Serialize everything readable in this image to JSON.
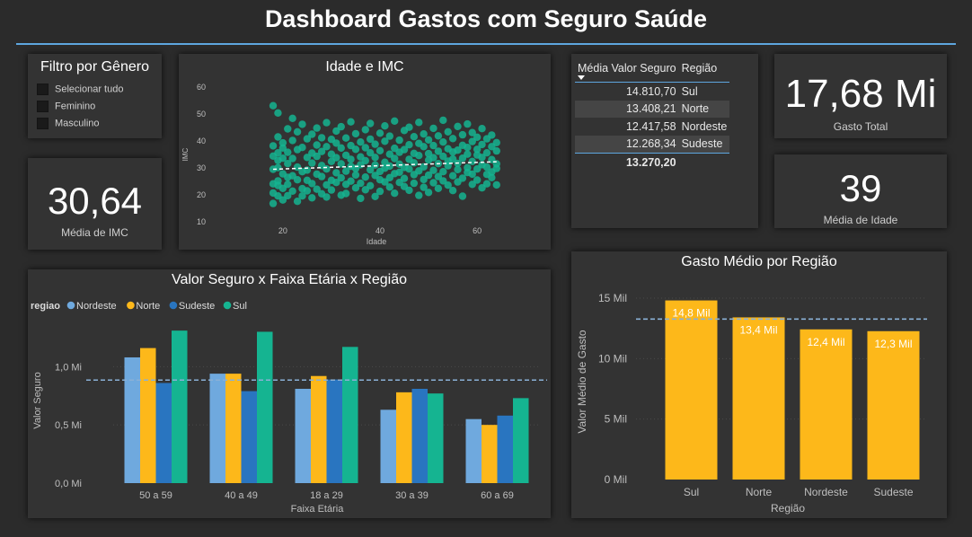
{
  "header": {
    "title": "Dashboard Gastos com Seguro Saúde"
  },
  "filter": {
    "title": "Filtro por Gênero",
    "options": [
      "Selecionar tudo",
      "Feminino",
      "Masculino"
    ]
  },
  "kpis": {
    "imc": {
      "value": "30,64",
      "label": "Média de IMC"
    },
    "total": {
      "value": "17,68 Mi",
      "label": "Gasto Total"
    },
    "age": {
      "value": "39",
      "label": "Média de Idade"
    }
  },
  "table": {
    "headers": [
      "Média Valor Seguro",
      "Região"
    ],
    "rows": [
      {
        "value": "14.810,70",
        "region": "Sul"
      },
      {
        "value": "13.408,21",
        "region": "Norte"
      },
      {
        "value": "12.417,58",
        "region": "Nordeste"
      },
      {
        "value": "12.268,34",
        "region": "Sudeste"
      }
    ],
    "total": "13.270,20"
  },
  "colors": {
    "teal": "#15b491",
    "yellow": "#fdb81a",
    "lightblue": "#6fa9de",
    "darkblue": "#2975c0",
    "reference": "#8ab0d6",
    "panel": "#333333",
    "accent_line": "#5ea6df"
  },
  "chart_data": [
    {
      "id": "scatter",
      "type": "scatter",
      "title": "Idade e IMC",
      "xlabel": "Idade",
      "ylabel": "IMC",
      "xlim": [
        13,
        67
      ],
      "ylim": [
        10,
        60
      ],
      "xticks": [
        20,
        40,
        60
      ],
      "yticks": [
        10,
        20,
        30,
        40,
        50,
        60
      ],
      "trendline": {
        "x": [
          18,
          64
        ],
        "y": [
          29.5,
          32.3
        ]
      },
      "points": [
        [
          18,
          16.8
        ],
        [
          18,
          38.2
        ],
        [
          18,
          24.1
        ],
        [
          18,
          34.4
        ],
        [
          18,
          20.7
        ],
        [
          18,
          53.1
        ],
        [
          18,
          29.5
        ],
        [
          19,
          30.1
        ],
        [
          19,
          25.2
        ],
        [
          19,
          41.5
        ],
        [
          19,
          19.6
        ],
        [
          19,
          35.6
        ],
        [
          19,
          23.5
        ],
        [
          19,
          32.8
        ],
        [
          19,
          50.4
        ],
        [
          20,
          22.4
        ],
        [
          20,
          39.3
        ],
        [
          20,
          27.8
        ],
        [
          20,
          33.6
        ],
        [
          20,
          18.1
        ],
        [
          20,
          37.4
        ],
        [
          21,
          26.5
        ],
        [
          21,
          44.5
        ],
        [
          21,
          19.7
        ],
        [
          21,
          31.6
        ],
        [
          21,
          23.9
        ],
        [
          21,
          35.8
        ],
        [
          22,
          27.1
        ],
        [
          22,
          48.4
        ],
        [
          22,
          21.4
        ],
        [
          22,
          33.5
        ],
        [
          22,
          40.2
        ],
        [
          23,
          25.6
        ],
        [
          23,
          17.6
        ],
        [
          23,
          36.8
        ],
        [
          23,
          30.3
        ],
        [
          23,
          43.4
        ],
        [
          24,
          22.3
        ],
        [
          24,
          28.6
        ],
        [
          24,
          37.6
        ],
        [
          24,
          19.6
        ],
        [
          24,
          46.2
        ],
        [
          25,
          25.4
        ],
        [
          25,
          33.9
        ],
        [
          25,
          21.5
        ],
        [
          25,
          40.8
        ],
        [
          25,
          29.2
        ],
        [
          26,
          24.2
        ],
        [
          26,
          35.5
        ],
        [
          26,
          18.9
        ],
        [
          26,
          42.5
        ],
        [
          26,
          31.8
        ],
        [
          27,
          27.7
        ],
        [
          27,
          38.5
        ],
        [
          27,
          22.1
        ],
        [
          27,
          44.8
        ],
        [
          27,
          34.3
        ],
        [
          28,
          26.8
        ],
        [
          28,
          41.2
        ],
        [
          28,
          20.4
        ],
        [
          28,
          36.1
        ],
        [
          28,
          30.9
        ],
        [
          29,
          23.7
        ],
        [
          29,
          46.8
        ],
        [
          29,
          29.6
        ],
        [
          29,
          37.9
        ],
        [
          29,
          19.2
        ],
        [
          30,
          32.4
        ],
        [
          30,
          25.4
        ],
        [
          30,
          40.6
        ],
        [
          30,
          21.8
        ],
        [
          30,
          35.1
        ],
        [
          31,
          28.2
        ],
        [
          31,
          43.7
        ],
        [
          31,
          24.6
        ],
        [
          31,
          33.8
        ],
        [
          31,
          39.2
        ],
        [
          32,
          26.3
        ],
        [
          32,
          19.9
        ],
        [
          32,
          37.4
        ],
        [
          32,
          31.5
        ],
        [
          32,
          45.3
        ],
        [
          33,
          23.9
        ],
        [
          33,
          34.7
        ],
        [
          33,
          28.8
        ],
        [
          33,
          41.1
        ],
        [
          33,
          20.5
        ],
        [
          34,
          30.6
        ],
        [
          34,
          38.3
        ],
        [
          34,
          25.1
        ],
        [
          34,
          47.1
        ],
        [
          34,
          33.2
        ],
        [
          35,
          27.4
        ],
        [
          35,
          36.9
        ],
        [
          35,
          22.6
        ],
        [
          35,
          42.7
        ],
        [
          35,
          29.8
        ],
        [
          36,
          34.1
        ],
        [
          36,
          24.3
        ],
        [
          36,
          39.6
        ],
        [
          36,
          31.2
        ],
        [
          36,
          18.7
        ],
        [
          37,
          26.6
        ],
        [
          37,
          44.2
        ],
        [
          37,
          32.7
        ],
        [
          37,
          21.9
        ],
        [
          37,
          37.5
        ],
        [
          38,
          29.3
        ],
        [
          38,
          40.7
        ],
        [
          38,
          23.4
        ],
        [
          38,
          35.6
        ],
        [
          38,
          46.5
        ],
        [
          39,
          27.2
        ],
        [
          39,
          33.9
        ],
        [
          39,
          19.4
        ],
        [
          39,
          38.8
        ],
        [
          39,
          31.1
        ],
        [
          40,
          25.6
        ],
        [
          40,
          42.9
        ],
        [
          40,
          36.4
        ],
        [
          40,
          28.7
        ],
        [
          40,
          21.3
        ],
        [
          41,
          32.1
        ],
        [
          41,
          39.9
        ],
        [
          41,
          24.8
        ],
        [
          41,
          45.6
        ],
        [
          41,
          29.9
        ],
        [
          42,
          35.1
        ],
        [
          42,
          26.4
        ],
        [
          42,
          41.8
        ],
        [
          42,
          30.7
        ],
        [
          42,
          22.9
        ],
        [
          43,
          33.5
        ],
        [
          43,
          47.4
        ],
        [
          43,
          27.9
        ],
        [
          43,
          37.3
        ],
        [
          43,
          20.6
        ],
        [
          44,
          31.4
        ],
        [
          44,
          24.6
        ],
        [
          44,
          40.3
        ],
        [
          44,
          35.8
        ],
        [
          44,
          28.4
        ],
        [
          45,
          36.8
        ],
        [
          45,
          23.1
        ],
        [
          45,
          43.9
        ],
        [
          45,
          30.2
        ],
        [
          45,
          26.1
        ],
        [
          46,
          33.2
        ],
        [
          46,
          38.6
        ],
        [
          46,
          21.7
        ],
        [
          46,
          45.1
        ],
        [
          46,
          29.6
        ],
        [
          47,
          27.5
        ],
        [
          47,
          35.4
        ],
        [
          47,
          41.6
        ],
        [
          47,
          24.3
        ],
        [
          47,
          31.9
        ],
        [
          48,
          34.6
        ],
        [
          48,
          19.8
        ],
        [
          48,
          39.1
        ],
        [
          48,
          28.9
        ],
        [
          48,
          46.9
        ],
        [
          49,
          30.4
        ],
        [
          49,
          25.7
        ],
        [
          49,
          37.9
        ],
        [
          49,
          42.6
        ],
        [
          49,
          22.8
        ],
        [
          50,
          32.9
        ],
        [
          50,
          27.3
        ],
        [
          50,
          40.4
        ],
        [
          50,
          35.3
        ],
        [
          50,
          20.9
        ],
        [
          51,
          29.1
        ],
        [
          51,
          44.7
        ],
        [
          51,
          33.8
        ],
        [
          51,
          24.5
        ],
        [
          51,
          38.3
        ],
        [
          52,
          31.6
        ],
        [
          52,
          26.8
        ],
        [
          52,
          41.9
        ],
        [
          52,
          36.2
        ],
        [
          52,
          22.4
        ],
        [
          53,
          34.3
        ],
        [
          53,
          47.7
        ],
        [
          53,
          28.6
        ],
        [
          53,
          39.6
        ],
        [
          53,
          25.2
        ],
        [
          54,
          30.8
        ],
        [
          54,
          23.6
        ],
        [
          54,
          37.1
        ],
        [
          54,
          43.4
        ],
        [
          54,
          32.5
        ],
        [
          55,
          35.9
        ],
        [
          55,
          27.1
        ],
        [
          55,
          40.9
        ],
        [
          55,
          21.6
        ],
        [
          55,
          33.3
        ],
        [
          56,
          29.4
        ],
        [
          56,
          45.4
        ],
        [
          56,
          36.6
        ],
        [
          56,
          24.8
        ],
        [
          56,
          31.7
        ],
        [
          57,
          38.4
        ],
        [
          57,
          26.2
        ],
        [
          57,
          42.3
        ],
        [
          57,
          33.6
        ],
        [
          57,
          19.5
        ],
        [
          58,
          30.1
        ],
        [
          58,
          37.6
        ],
        [
          58,
          28.3
        ],
        [
          58,
          46.3
        ],
        [
          58,
          35.1
        ],
        [
          59,
          32.4
        ],
        [
          59,
          23.9
        ],
        [
          59,
          39.8
        ],
        [
          59,
          27.7
        ],
        [
          59,
          43.1
        ],
        [
          60,
          34.8
        ],
        [
          60,
          29.6
        ],
        [
          60,
          41.4
        ],
        [
          60,
          25.5
        ],
        [
          60,
          36.9
        ],
        [
          61,
          31.2
        ],
        [
          61,
          38.7
        ],
        [
          61,
          22.6
        ],
        [
          61,
          44.6
        ],
        [
          61,
          33.9
        ],
        [
          62,
          27.6
        ],
        [
          62,
          35.6
        ],
        [
          62,
          40.8
        ],
        [
          62,
          30.3
        ],
        [
          62,
          24.1
        ],
        [
          63,
          33.1
        ],
        [
          63,
          37.9
        ],
        [
          63,
          28.5
        ],
        [
          63,
          42.2
        ],
        [
          63,
          26.4
        ],
        [
          64,
          31.5
        ],
        [
          64,
          36.3
        ],
        [
          64,
          23.7
        ],
        [
          64,
          39.4
        ],
        [
          64,
          29.8
        ]
      ]
    },
    {
      "id": "grouped",
      "type": "bar",
      "title": "Valor Seguro x Faixa Etária x Região",
      "xlabel": "Faixa Etária",
      "ylabel": "Valor Seguro",
      "legend_title": "regiao",
      "legend_position": "top-left",
      "categories": [
        "50 a 59",
        "40 a 49",
        "18 a 29",
        "30 a 39",
        "60 a 69"
      ],
      "yticks": [
        0,
        0.5,
        1.0
      ],
      "ytick_labels": [
        "0,0 Mi",
        "0,5 Mi",
        "1,0 Mi"
      ],
      "ylim": [
        0,
        1.45
      ],
      "reference_line": 0.885,
      "series": [
        {
          "name": "Nordeste",
          "color": "#6fa9de",
          "values": [
            1.08,
            0.94,
            0.81,
            0.63,
            0.55
          ]
        },
        {
          "name": "Norte",
          "color": "#fdb81a",
          "values": [
            1.16,
            0.94,
            0.92,
            0.78,
            0.5
          ]
        },
        {
          "name": "Sudeste",
          "color": "#2975c0",
          "values": [
            0.86,
            0.79,
            0.89,
            0.81,
            0.58
          ]
        },
        {
          "name": "Sul",
          "color": "#15b491",
          "values": [
            1.31,
            1.3,
            1.17,
            0.77,
            0.73
          ]
        }
      ]
    },
    {
      "id": "regional",
      "type": "bar",
      "title": "Gasto Médio por Região",
      "xlabel": "Região",
      "ylabel": "Valor Médio de Gasto",
      "categories": [
        "Sul",
        "Norte",
        "Nordeste",
        "Sudeste"
      ],
      "values": [
        14810.7,
        13408.21,
        12417.58,
        12268.34
      ],
      "data_labels": [
        "14,8 Mil",
        "13,4 Mil",
        "12,4 Mil",
        "12,3 Mil"
      ],
      "yticks": [
        0,
        5000,
        10000,
        15000
      ],
      "ytick_labels": [
        "0 Mil",
        "5 Mil",
        "10 Mil",
        "15 Mil"
      ],
      "ylim": [
        0,
        15000
      ],
      "reference_line": 13270.2,
      "color": "#fdb81a"
    }
  ]
}
